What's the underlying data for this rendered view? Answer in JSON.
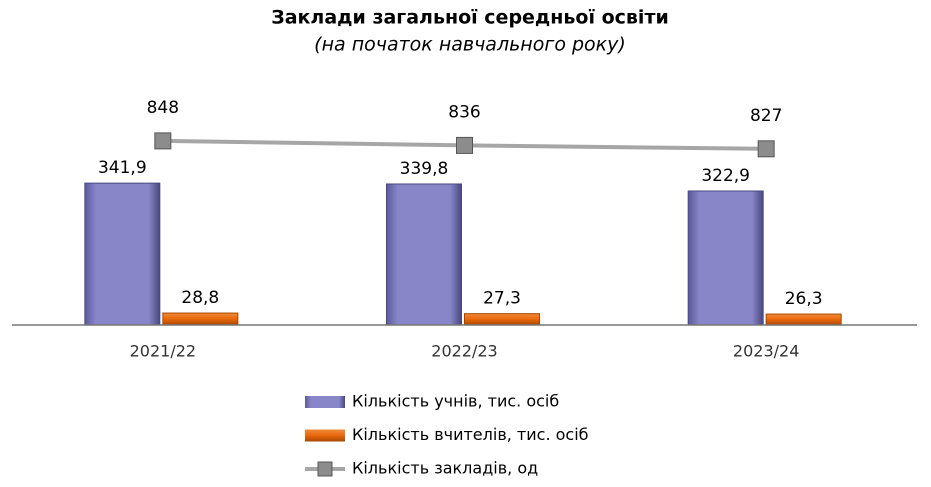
{
  "chart_data": {
    "type": "bar",
    "title": "Заклади загальної середньої освіти",
    "subtitle": "(на початок навчального року)",
    "categories": [
      "2021/22",
      "2022/23",
      "2023/24"
    ],
    "ylim": [
      0,
      600
    ],
    "y2lim": [
      360,
      1020
    ],
    "series": [
      {
        "name": "Кількість учнів, тис. осіб",
        "color": "#8886c8",
        "values": [
          341.9,
          339.8,
          322.9
        ],
        "value_labels": [
          "341,9",
          "339,8",
          "322,9"
        ]
      },
      {
        "name": "Кількість вчителів, тис. осіб",
        "color": "#e8680c",
        "values": [
          28.8,
          27.3,
          26.3
        ],
        "value_labels": [
          "28,8",
          "27,3",
          "26,3"
        ]
      },
      {
        "name": "Кількість закладів, од",
        "color": "#a6a6a6",
        "type": "line",
        "axis": "y2",
        "values": [
          848,
          836,
          827
        ]
      }
    ]
  }
}
